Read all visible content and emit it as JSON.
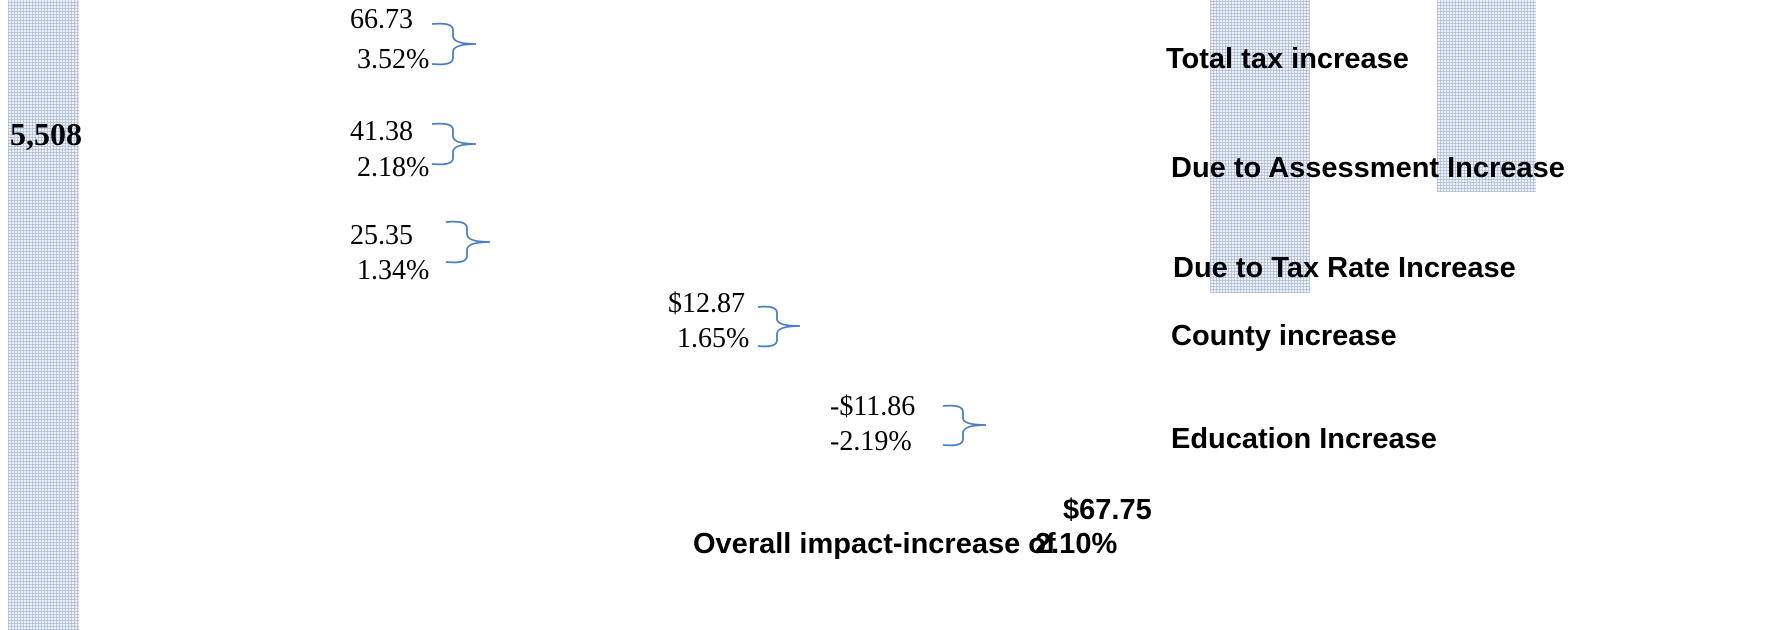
{
  "stats": {
    "base_value": "5,508"
  },
  "chart_data": {
    "type": "table",
    "rows": [
      {
        "label": "Total tax increase",
        "amount": "66.73",
        "percent": "3.52%",
        "amount_value": 66.73,
        "percent_value": 3.52
      },
      {
        "label": "Due to Assessment Increase",
        "amount": "41.38",
        "percent": "2.18%",
        "amount_value": 41.38,
        "percent_value": 2.18
      },
      {
        "label": "Due to Tax Rate Increase",
        "amount": "25.35",
        "percent": "1.34%",
        "amount_value": 25.35,
        "percent_value": 1.34
      },
      {
        "label": "County increase",
        "amount": "$12.87",
        "percent": "1.65%",
        "amount_value": 12.87,
        "percent_value": 1.65
      },
      {
        "label": "Education Increase",
        "amount": "-$11.86",
        "percent": "-2.19%",
        "amount_value": -11.86,
        "percent_value": -2.19
      }
    ],
    "overall": {
      "amount": "$67.75",
      "label": "Overall impact-increase of",
      "percent": "2.10%",
      "amount_value": 67.75,
      "percent_value": 2.1
    }
  },
  "colors": {
    "brace": "#4a7ec2",
    "hatch_fill": "#eef2f8",
    "hatch_line": "#96a8cd",
    "text": "#000000"
  }
}
